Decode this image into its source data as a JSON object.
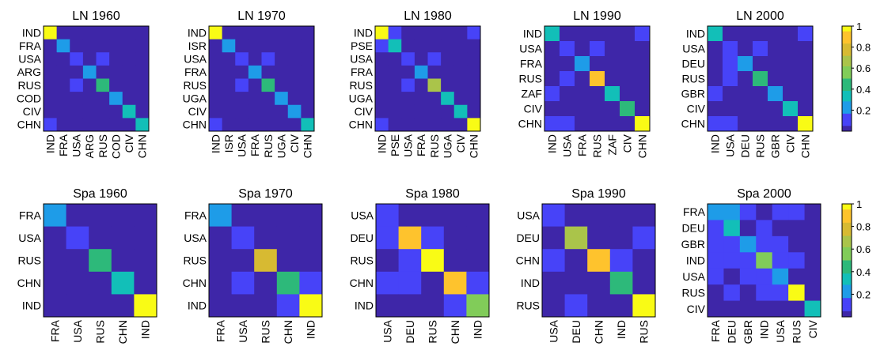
{
  "colormap": [
    "#3e26a8",
    "#4743f8",
    "#1e9ce8",
    "#12bfb8",
    "#2db97a",
    "#81cc59",
    "#aac44a",
    "#d7ba32",
    "#fec32d",
    "#f9fb15"
  ],
  "colorbar_ticks": [
    "1",
    "0.8",
    "0.6",
    "0.4",
    "0.2"
  ],
  "chart_data": [
    {
      "type": "heatmap",
      "title": "LN 1960",
      "labels": [
        "IND",
        "FRA",
        "USA",
        "ARG",
        "RUS",
        "COD",
        "CIV",
        "CHN"
      ],
      "values": [
        [
          1,
          0.05,
          0.05,
          0.04,
          0.04,
          0.03,
          0.03,
          0.05
        ],
        [
          0.05,
          0.2,
          0.05,
          0.05,
          0.04,
          0.03,
          0.03,
          0.04
        ],
        [
          0.05,
          0.05,
          0.12,
          0.05,
          0.06,
          0.03,
          0.03,
          0.04
        ],
        [
          0.04,
          0.05,
          0.05,
          0.25,
          0.05,
          0.03,
          0.03,
          0.04
        ],
        [
          0.04,
          0.04,
          0.06,
          0.05,
          0.4,
          0.03,
          0.03,
          0.04
        ],
        [
          0.03,
          0.03,
          0.03,
          0.03,
          0.03,
          0.2,
          0.03,
          0.04
        ],
        [
          0.03,
          0.03,
          0.03,
          0.03,
          0.03,
          0.03,
          0.3,
          0.03
        ],
        [
          0.08,
          0.04,
          0.04,
          0.04,
          0.04,
          0.04,
          0.03,
          0.3
        ]
      ]
    },
    {
      "type": "heatmap",
      "title": "LN 1970",
      "labels": [
        "IND",
        "ISR",
        "USA",
        "FRA",
        "RUS",
        "UGA",
        "CIV",
        "CHN"
      ],
      "values": [
        [
          1,
          0.05,
          0.05,
          0.05,
          0.04,
          0.03,
          0.03,
          0.05
        ],
        [
          0.05,
          0.2,
          0.05,
          0.05,
          0.04,
          0.03,
          0.03,
          0.04
        ],
        [
          0.05,
          0.05,
          0.12,
          0.05,
          0.06,
          0.03,
          0.03,
          0.04
        ],
        [
          0.05,
          0.05,
          0.05,
          0.2,
          0.05,
          0.03,
          0.03,
          0.04
        ],
        [
          0.04,
          0.04,
          0.06,
          0.05,
          0.45,
          0.03,
          0.03,
          0.04
        ],
        [
          0.03,
          0.03,
          0.03,
          0.03,
          0.03,
          0.2,
          0.03,
          0.04
        ],
        [
          0.03,
          0.03,
          0.03,
          0.03,
          0.03,
          0.03,
          0.2,
          0.03
        ],
        [
          0.08,
          0.04,
          0.04,
          0.04,
          0.04,
          0.04,
          0.03,
          0.35
        ]
      ]
    },
    {
      "type": "heatmap",
      "title": "LN 1980",
      "labels": [
        "IND",
        "PSE",
        "USA",
        "FRA",
        "RUS",
        "UGA",
        "CIV",
        "CHN"
      ],
      "values": [
        [
          1,
          0.08,
          0.05,
          0.05,
          0.04,
          0.03,
          0.03,
          0.06
        ],
        [
          0.08,
          0.3,
          0.05,
          0.05,
          0.04,
          0.03,
          0.03,
          0.04
        ],
        [
          0.05,
          0.05,
          0.15,
          0.05,
          0.06,
          0.03,
          0.03,
          0.05
        ],
        [
          0.05,
          0.05,
          0.05,
          0.2,
          0.05,
          0.03,
          0.03,
          0.04
        ],
        [
          0.04,
          0.04,
          0.06,
          0.05,
          0.65,
          0.03,
          0.03,
          0.05
        ],
        [
          0.03,
          0.03,
          0.05,
          0.03,
          0.03,
          0.3,
          0.03,
          0.04
        ],
        [
          0.03,
          0.03,
          0.03,
          0.03,
          0.03,
          0.03,
          0.35,
          0.03
        ],
        [
          0.08,
          0.04,
          0.05,
          0.04,
          0.05,
          0.04,
          0.03,
          1
        ]
      ]
    },
    {
      "type": "heatmap",
      "title": "LN 1990",
      "labels": [
        "IND",
        "USA",
        "FRA",
        "RUS",
        "ZAF",
        "CIV",
        "CHN"
      ],
      "values": [
        [
          0.35,
          0.05,
          0.05,
          0.04,
          0.05,
          0.04,
          0.06
        ],
        [
          0.05,
          0.15,
          0.05,
          0.06,
          0.04,
          0.03,
          0.05
        ],
        [
          0.05,
          0.05,
          0.25,
          0.05,
          0.03,
          0.03,
          0.04
        ],
        [
          0.05,
          0.06,
          0.05,
          0.9,
          0.04,
          0.03,
          0.05
        ],
        [
          0.1,
          0.05,
          0.04,
          0.04,
          0.35,
          0.03,
          0.04
        ],
        [
          0.05,
          0.04,
          0.03,
          0.03,
          0.03,
          0.45,
          0.03
        ],
        [
          0.12,
          0.1,
          0.04,
          0.05,
          0.04,
          0.03,
          1
        ]
      ]
    },
    {
      "type": "heatmap",
      "title": "LN 2000",
      "labels": [
        "IND",
        "USA",
        "DEU",
        "RUS",
        "GBR",
        "CIV",
        "CHN"
      ],
      "values": [
        [
          0.3,
          0.05,
          0.05,
          0.04,
          0.04,
          0.04,
          0.06
        ],
        [
          0.05,
          0.15,
          0.05,
          0.06,
          0.04,
          0.03,
          0.05
        ],
        [
          0.05,
          0.08,
          0.2,
          0.05,
          0.04,
          0.03,
          0.04
        ],
        [
          0.05,
          0.06,
          0.05,
          0.45,
          0.04,
          0.03,
          0.05
        ],
        [
          0.08,
          0.05,
          0.04,
          0.04,
          0.2,
          0.03,
          0.04
        ],
        [
          0.05,
          0.04,
          0.03,
          0.03,
          0.03,
          0.35,
          0.03
        ],
        [
          0.08,
          0.15,
          0.04,
          0.05,
          0.04,
          0.03,
          1
        ]
      ]
    },
    {
      "type": "heatmap",
      "title": "Spa 1960",
      "labels": [
        "FRA",
        "USA",
        "RUS",
        "CHN",
        "IND"
      ],
      "values": [
        [
          0.2,
          0.04,
          0.03,
          0.03,
          0.03
        ],
        [
          0.04,
          0.1,
          0.03,
          0.03,
          0.03
        ],
        [
          0.03,
          0.03,
          0.45,
          0.03,
          0.03
        ],
        [
          0.03,
          0.03,
          0.03,
          0.3,
          0.05
        ],
        [
          0.03,
          0.03,
          0.03,
          0.05,
          1
        ]
      ]
    },
    {
      "type": "heatmap",
      "title": "Spa 1970",
      "labels": [
        "FRA",
        "USA",
        "RUS",
        "CHN",
        "IND"
      ],
      "values": [
        [
          0.2,
          0.04,
          0.05,
          0.04,
          0.05
        ],
        [
          0.04,
          0.12,
          0.04,
          0.03,
          0.03
        ],
        [
          0.05,
          0.04,
          0.75,
          0.04,
          0.03
        ],
        [
          0.04,
          0.06,
          0.04,
          0.45,
          0.06
        ],
        [
          0.03,
          0.03,
          0.03,
          0.06,
          1
        ]
      ]
    },
    {
      "type": "heatmap",
      "title": "Spa 1980",
      "labels": [
        "USA",
        "DEU",
        "RUS",
        "CHN",
        "IND"
      ],
      "values": [
        [
          0.1,
          0.05,
          0.04,
          0.04,
          0.05
        ],
        [
          0.08,
          0.85,
          0.1,
          0.05,
          0.04
        ],
        [
          0.05,
          0.15,
          1,
          0.05,
          0.04
        ],
        [
          0.06,
          0.07,
          0.05,
          0.85,
          0.1
        ],
        [
          0.04,
          0.04,
          0.04,
          0.08,
          0.6
        ]
      ]
    },
    {
      "type": "heatmap",
      "title": "Spa 1990",
      "labels": [
        "USA",
        "DEU",
        "CHN",
        "IND",
        "RUS"
      ],
      "values": [
        [
          0.12,
          0.05,
          0.05,
          0.04,
          0.05
        ],
        [
          0.05,
          0.65,
          0.04,
          0.04,
          0.08
        ],
        [
          0.08,
          0.04,
          0.85,
          0.1,
          0.05
        ],
        [
          0.05,
          0.04,
          0.05,
          0.45,
          0.04
        ],
        [
          0.04,
          0.15,
          0.05,
          0.05,
          1
        ]
      ]
    },
    {
      "type": "heatmap",
      "title": "Spa 2000",
      "labels": [
        "FRA",
        "DEU",
        "GBR",
        "IND",
        "USA",
        "RUS",
        "CIV"
      ],
      "values": [
        [
          0.25,
          0.2,
          0.06,
          0.05,
          0.08,
          0.15,
          0.04
        ],
        [
          0.1,
          0.35,
          0.05,
          0.1,
          0.05,
          0.05,
          0.04
        ],
        [
          0.06,
          0.08,
          0.2,
          0.08,
          0.06,
          0.05,
          0.03
        ],
        [
          0.08,
          0.1,
          0.06,
          0.6,
          0.08,
          0.06,
          0.04
        ],
        [
          0.06,
          0.05,
          0.08,
          0.07,
          0.2,
          0.05,
          0.04
        ],
        [
          0.05,
          0.06,
          0.04,
          0.06,
          0.06,
          1,
          0.05
        ],
        [
          0.05,
          0.04,
          0.03,
          0.04,
          0.04,
          0.05,
          0.3
        ]
      ]
    }
  ]
}
